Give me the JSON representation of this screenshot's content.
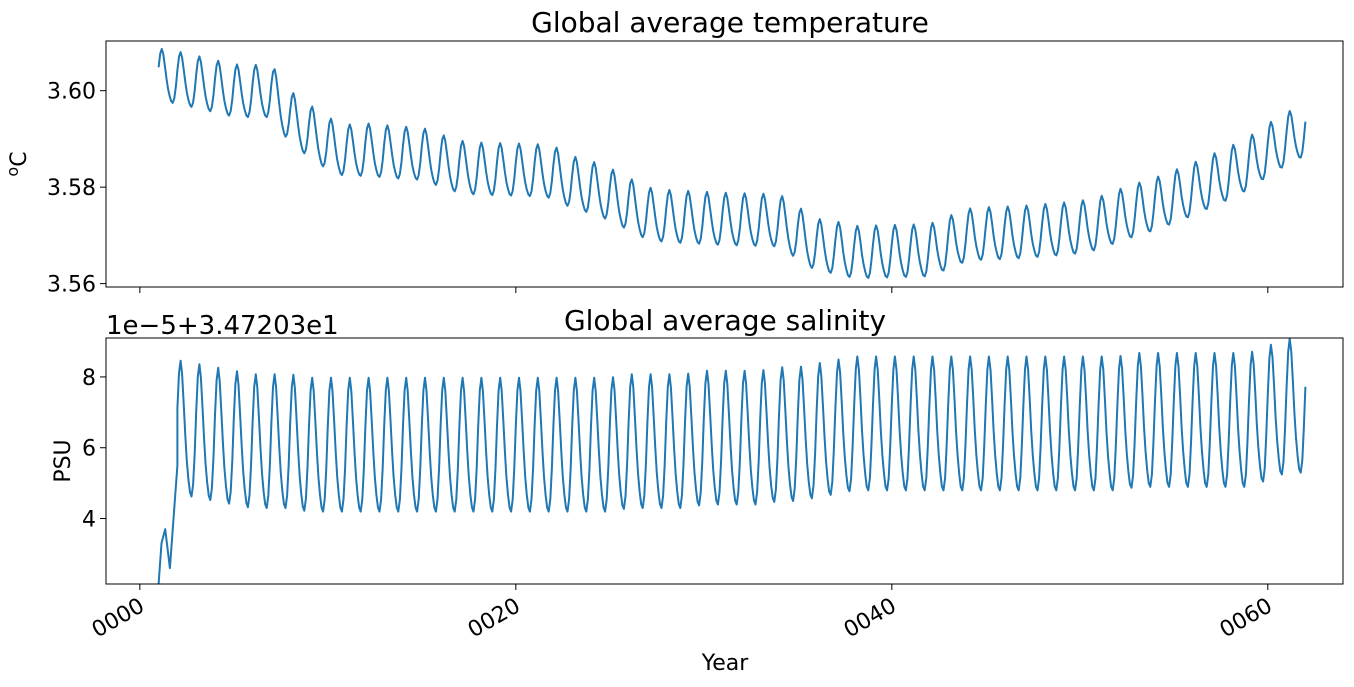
{
  "chart_data": [
    {
      "type": "line",
      "title": "Global average temperature",
      "ylabel_base": "o",
      "ylabel_unit": "C",
      "xlabel": "",
      "xlim": [
        -1.8,
        64.0
      ],
      "ylim": [
        3.5593,
        3.6103
      ],
      "yticks": [
        3.56,
        3.58,
        3.6
      ],
      "ytick_labels": [
        "3.56",
        "3.58",
        "3.60"
      ],
      "xticks": [
        0,
        20,
        40,
        60
      ],
      "xtick_labels": [
        "",
        "",
        "",
        ""
      ],
      "grid": false,
      "color": "#1f77b4",
      "series": [
        {
          "x": [
            1.0,
            2.0,
            3.0,
            4.0,
            5.0,
            6.0,
            7.0,
            8.0,
            9.0,
            10.0,
            11.0,
            12.0,
            13.0,
            14.0,
            15.0,
            16.0,
            17.0,
            18.0,
            19.0,
            20.0,
            21.0,
            22.0,
            23.0,
            24.0,
            25.0,
            26.0,
            27.0,
            28.0,
            29.0,
            30.0,
            31.0,
            32.0,
            33.0,
            34.0,
            35.0,
            36.0,
            37.0,
            38.0,
            39.0,
            40.0,
            41.0,
            42.0,
            43.0,
            44.0,
            45.0,
            46.0,
            47.0,
            48.0,
            49.0,
            50.0,
            51.0,
            52.0,
            53.0,
            54.0,
            55.0,
            56.0,
            57.0,
            58.0,
            59.0,
            60.0,
            61.0,
            62.0
          ],
          "y": [
            3.6028,
            3.6022,
            3.6013,
            3.6004,
            3.5995,
            3.5994,
            3.5994,
            3.594,
            3.5912,
            3.5885,
            3.587,
            3.5873,
            3.5869,
            3.5866,
            3.5864,
            3.585,
            3.5837,
            3.5833,
            3.5832,
            3.5831,
            3.583,
            3.5826,
            3.5805,
            3.5795,
            3.578,
            3.576,
            3.574,
            3.5735,
            3.5733,
            3.5731,
            3.5729,
            3.5728,
            3.5727,
            3.5726,
            3.57,
            3.5675,
            3.567,
            3.566,
            3.5661,
            3.5662,
            3.5663,
            3.5664,
            3.568,
            3.5696,
            3.5699,
            3.57,
            3.5702,
            3.5705,
            3.5708,
            3.5712,
            3.572,
            3.5735,
            3.5748,
            3.576,
            3.5775,
            3.579,
            3.5808,
            3.5825,
            3.5845,
            3.5872,
            3.5895,
            3.5915
          ]
        }
      ],
      "seasonal_amplitude": 0.0053
    },
    {
      "type": "line",
      "title": "Global average salinity",
      "offset_label": "1e−5+3.47203e1",
      "ylabel": "PSU",
      "xlabel": "Year",
      "xlim": [
        -1.8,
        64.0
      ],
      "ylim": [
        2.15,
        9.1
      ],
      "yticks": [
        4,
        6,
        8
      ],
      "ytick_labels": [
        "4",
        "6",
        "8"
      ],
      "xticks": [
        0,
        20,
        40,
        60
      ],
      "xtick_labels": [
        "0000",
        "0020",
        "0040",
        "0060"
      ],
      "grid": false,
      "color": "#1f77b4",
      "series": [
        {
          "x": [
            1.0,
            2.0,
            3.0,
            4.0,
            5.0,
            6.0,
            7.0,
            8.0,
            9.0,
            10.0,
            11.0,
            12.0,
            13.0,
            14.0,
            15.0,
            16.0,
            17.0,
            18.0,
            19.0,
            20.0,
            21.0,
            22.0,
            23.0,
            24.0,
            25.0,
            26.0,
            27.0,
            28.0,
            29.0,
            30.0,
            31.0,
            32.0,
            33.0,
            34.0,
            35.0,
            36.0,
            37.0,
            38.0,
            39.0,
            40.0,
            41.0,
            42.0,
            43.0,
            44.0,
            45.0,
            46.0,
            47.0,
            48.0,
            49.0,
            50.0,
            51.0,
            52.0,
            53.0,
            54.0,
            55.0,
            56.0,
            57.0,
            58.0,
            59.0,
            60.0,
            61.0,
            62.0
          ],
          "y": [
            6.0,
            6.4,
            6.3,
            6.2,
            6.1,
            6.0,
            6.0,
            6.0,
            5.9,
            5.9,
            5.9,
            5.9,
            5.9,
            5.9,
            5.9,
            5.9,
            5.9,
            5.9,
            5.9,
            5.9,
            5.9,
            5.9,
            5.9,
            5.9,
            5.9,
            6.0,
            6.0,
            6.0,
            6.0,
            6.1,
            6.1,
            6.1,
            6.1,
            6.2,
            6.2,
            6.3,
            6.4,
            6.5,
            6.5,
            6.5,
            6.5,
            6.5,
            6.5,
            6.5,
            6.5,
            6.5,
            6.5,
            6.5,
            6.5,
            6.5,
            6.5,
            6.5,
            6.6,
            6.6,
            6.6,
            6.6,
            6.6,
            6.6,
            6.6,
            6.8,
            7.0,
            7.0
          ]
        }
      ],
      "seasonal_amplitude": 1.85,
      "initial_ramp": {
        "x": [
          1.0,
          1.15,
          1.35,
          1.6,
          2.0
        ],
        "y": [
          2.15,
          3.3,
          3.7,
          2.6,
          5.5
        ]
      }
    }
  ]
}
